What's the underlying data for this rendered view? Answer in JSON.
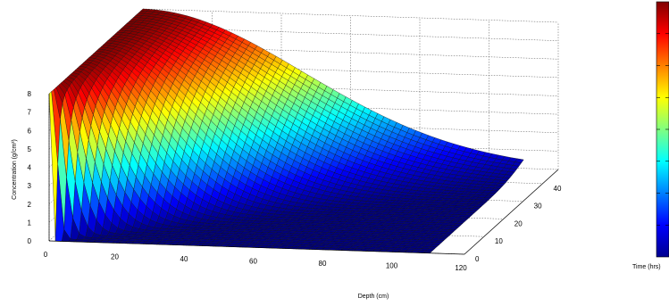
{
  "chart_data": {
    "type": "surface3d",
    "xlabel": "Depth (cm)",
    "ylabel": "Time (hrs)",
    "zlabel": "Concentration (g/cm³)",
    "x_ticks": [
      "0",
      "20",
      "40",
      "60",
      "80",
      "100",
      "120"
    ],
    "y_ticks": [
      "0",
      "10",
      "20",
      "30",
      "40"
    ],
    "z_ticks": [
      "0",
      "1",
      "2",
      "3",
      "4",
      "5",
      "6",
      "7",
      "8"
    ],
    "xlim": [
      0,
      120
    ],
    "ylim": [
      0,
      48
    ],
    "zlim": [
      0,
      8
    ],
    "colormap": "jet",
    "colorbar": true,
    "grid": true,
    "surface_samples": {
      "description": "",
      "depth": [
        0,
        10,
        20,
        30,
        40,
        50,
        60,
        70,
        80,
        90,
        100,
        110,
        120
      ],
      "time_48h_concentration": [
        8.0,
        7.9,
        7.5,
        6.6,
        5.2,
        3.7,
        2.3,
        1.2,
        0.55,
        0.22,
        0.08,
        0.03,
        0.0
      ],
      "time_0h_concentration": [
        8.0,
        0.5,
        0.05,
        0.0,
        0.0,
        0.0,
        0.0,
        0.0,
        0.0,
        0.0,
        0.0,
        0.0,
        0.0
      ]
    }
  }
}
